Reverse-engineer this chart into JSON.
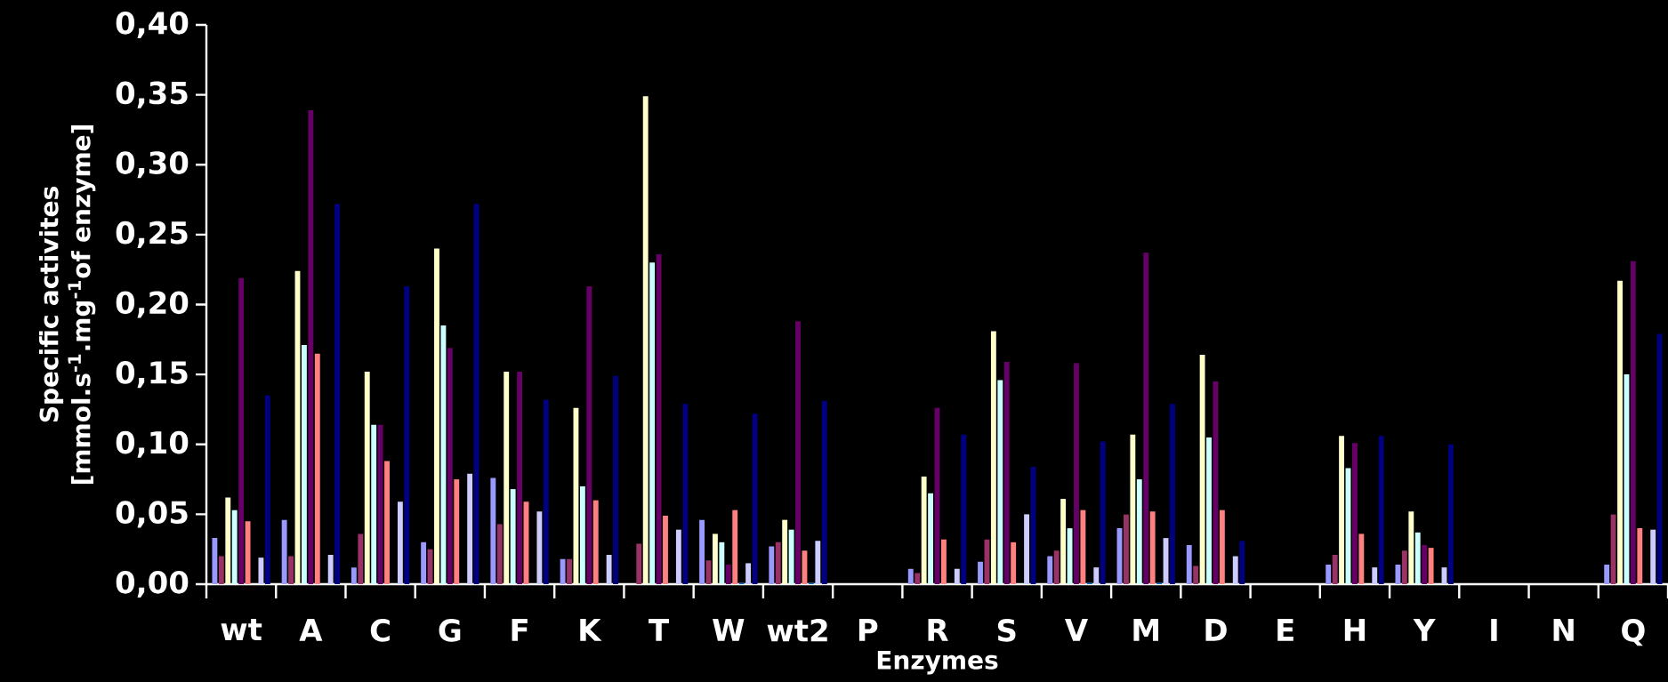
{
  "chart_data": {
    "type": "bar",
    "xlabel": "Enzymes",
    "ylabel": "Specific activites [mmol.s$^{-1}$.mg$^{-1}$of enzyme]",
    "categories": [
      "wt",
      "A",
      "C",
      "G",
      "F",
      "K",
      "T",
      "W",
      "wt2",
      "P",
      "R",
      "S",
      "V",
      "M",
      "D",
      "E",
      "H",
      "Y",
      "I",
      "N",
      "Q"
    ],
    "ylim": [
      0,
      0.4
    ],
    "yticks": [
      {
        "value": 0,
        "label": "0,00"
      },
      {
        "value": 0.05,
        "label": "0,05"
      },
      {
        "value": 0.1,
        "label": "0,10"
      },
      {
        "value": 0.15,
        "label": "0,15"
      },
      {
        "value": 0.2,
        "label": "0,20"
      },
      {
        "value": 0.25,
        "label": "0,25"
      },
      {
        "value": 0.3,
        "label": "0,30"
      },
      {
        "value": 0.35,
        "label": "0,35"
      },
      {
        "value": 0.4,
        "label": "0,40"
      }
    ],
    "series": [
      {
        "color": "#9999ff",
        "values": [
          0.033,
          0.046,
          0.012,
          0.03,
          0.076,
          0.018,
          null,
          0.046,
          0.027,
          null,
          0.011,
          0.016,
          0.02,
          0.04,
          0.028,
          null,
          0.014,
          0.014,
          null,
          null,
          0.014
        ]
      },
      {
        "color": "#993366",
        "values": [
          0.02,
          0.02,
          0.036,
          0.025,
          0.043,
          0.018,
          0.029,
          0.017,
          0.03,
          null,
          0.008,
          0.032,
          0.024,
          0.05,
          0.013,
          null,
          0.021,
          0.024,
          null,
          null,
          0.05
        ]
      },
      {
        "color": "#ffffcc",
        "values": [
          0.062,
          0.224,
          0.152,
          0.24,
          0.152,
          0.126,
          0.349,
          0.036,
          0.046,
          null,
          0.077,
          0.181,
          0.061,
          0.107,
          0.164,
          null,
          0.106,
          0.052,
          null,
          null,
          0.217
        ]
      },
      {
        "color": "#ccffff",
        "values": [
          0.053,
          0.171,
          0.114,
          0.185,
          0.068,
          0.07,
          0.23,
          0.03,
          0.039,
          null,
          0.065,
          0.146,
          0.04,
          0.075,
          0.105,
          null,
          0.083,
          0.037,
          null,
          null,
          0.15
        ]
      },
      {
        "color": "#660066",
        "values": [
          0.219,
          0.339,
          0.114,
          0.169,
          0.152,
          0.213,
          0.236,
          0.014,
          0.188,
          null,
          0.126,
          0.159,
          0.158,
          0.237,
          0.145,
          null,
          0.101,
          0.028,
          null,
          null,
          0.231
        ]
      },
      {
        "color": "#ff8080",
        "values": [
          0.045,
          0.165,
          0.088,
          0.075,
          0.059,
          0.06,
          0.049,
          0.053,
          0.024,
          null,
          0.032,
          0.03,
          0.053,
          0.052,
          0.053,
          null,
          0.036,
          0.026,
          null,
          null,
          0.04
        ]
      },
      {
        "color": "#0066cc",
        "values": [
          null,
          null,
          null,
          null,
          null,
          null,
          null,
          0.001,
          0.001,
          null,
          null,
          null,
          0.001,
          0.001,
          null,
          null,
          null,
          null,
          null,
          null,
          null
        ]
      },
      {
        "color": "#ccccff",
        "values": [
          0.019,
          0.021,
          0.059,
          0.079,
          0.052,
          0.021,
          0.039,
          0.015,
          0.031,
          null,
          0.011,
          0.05,
          0.012,
          0.033,
          0.02,
          null,
          0.012,
          0.012,
          null,
          null,
          0.039
        ]
      },
      {
        "color": "#000080",
        "values": [
          0.135,
          0.272,
          0.213,
          0.272,
          0.132,
          0.149,
          0.129,
          0.122,
          0.131,
          null,
          0.107,
          0.084,
          0.102,
          0.129,
          0.031,
          null,
          0.106,
          0.1,
          null,
          null,
          0.179
        ]
      }
    ]
  }
}
